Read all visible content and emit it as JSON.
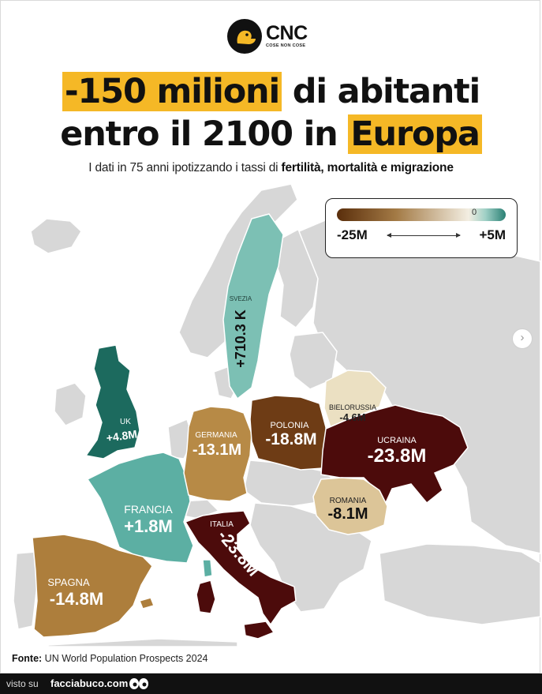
{
  "brand": {
    "name": "CNC",
    "tagline": "COSE NON COSE"
  },
  "title": {
    "line1_highlight": "-150 milioni",
    "line1_rest": " di abitanti",
    "line2_rest": "entro il 2100 in ",
    "line2_highlight": "Europa"
  },
  "subtitle": {
    "plain": "I dati in 75 anni ipotizzando i tassi di ",
    "bold": "fertilità, mortalità e migrazione"
  },
  "legend": {
    "min": "-25M",
    "max": "+5M",
    "zero_marker": "0"
  },
  "countries": [
    {
      "name": "SVEZIA",
      "value": "+710.3 K",
      "change_millions": 0.7103,
      "color": "#7cc0b4"
    },
    {
      "name": "UK",
      "value": "+4.8M",
      "change_millions": 4.8,
      "color": "#1c6a5e"
    },
    {
      "name": "GERMANIA",
      "value": "-13.1M",
      "change_millions": -13.1,
      "color": "#b78a46"
    },
    {
      "name": "POLONIA",
      "value": "-18.8M",
      "change_millions": -18.8,
      "color": "#6e3c15"
    },
    {
      "name": "BIELORUSSIA",
      "value": "-4.6M",
      "change_millions": -4.6,
      "color": "#ebe0c2"
    },
    {
      "name": "UCRAINA",
      "value": "-23.8M",
      "change_millions": -23.8,
      "color": "#4c0b0b"
    },
    {
      "name": "FRANCIA",
      "value": "+1.8M",
      "change_millions": 1.8,
      "color": "#5cafa3"
    },
    {
      "name": "ROMANIA",
      "value": "-8.1M",
      "change_millions": -8.1,
      "color": "#dcc598"
    },
    {
      "name": "ITALIA",
      "value": "-23.8M",
      "change_millions": -23.8,
      "color": "#4c0b0b"
    },
    {
      "name": "SPAGNA",
      "value": "-14.8M",
      "change_millions": -14.8,
      "color": "#ad7e3c"
    }
  ],
  "source": {
    "label": "Fonte:",
    "text": " UN World Population Prospects 2024"
  },
  "footer": {
    "visto": "visto su",
    "site": "facciabuco.com"
  },
  "colors": {
    "highlight": "#f5b826",
    "land_grey": "#d7d7d7",
    "scale_low": "#5a2e0c",
    "scale_mid": "#f3eee2",
    "scale_high": "#2a8074"
  },
  "icons": {
    "logo": "duck-logo-icon",
    "next": "chevron-right-icon"
  }
}
